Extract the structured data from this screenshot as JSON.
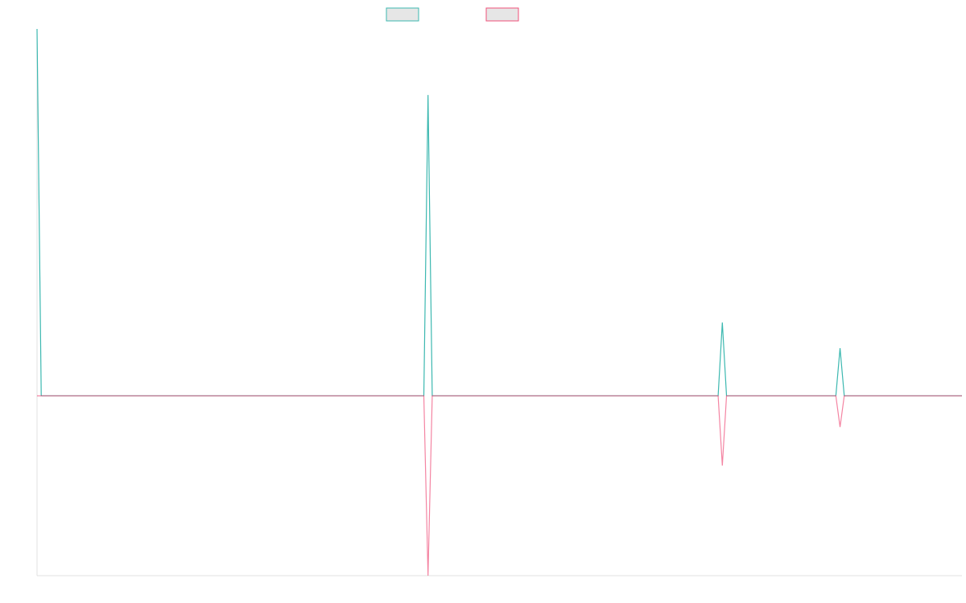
{
  "chart_data": {
    "type": "line",
    "x": [
      0,
      1,
      92,
      93,
      94,
      162,
      163,
      164,
      190,
      191,
      192,
      220
    ],
    "xlim": [
      0,
      220
    ],
    "ylim": [
      -49,
      100
    ],
    "series": [
      {
        "color": "#3cb8b0",
        "values": [
          100,
          0,
          0,
          82,
          0,
          0,
          20,
          0,
          0,
          13,
          0,
          0
        ]
      },
      {
        "color": "#f0507a",
        "values": [
          0,
          0,
          0,
          -49,
          0,
          0,
          -19,
          0,
          0,
          -8.5,
          0,
          0
        ]
      }
    ]
  }
}
